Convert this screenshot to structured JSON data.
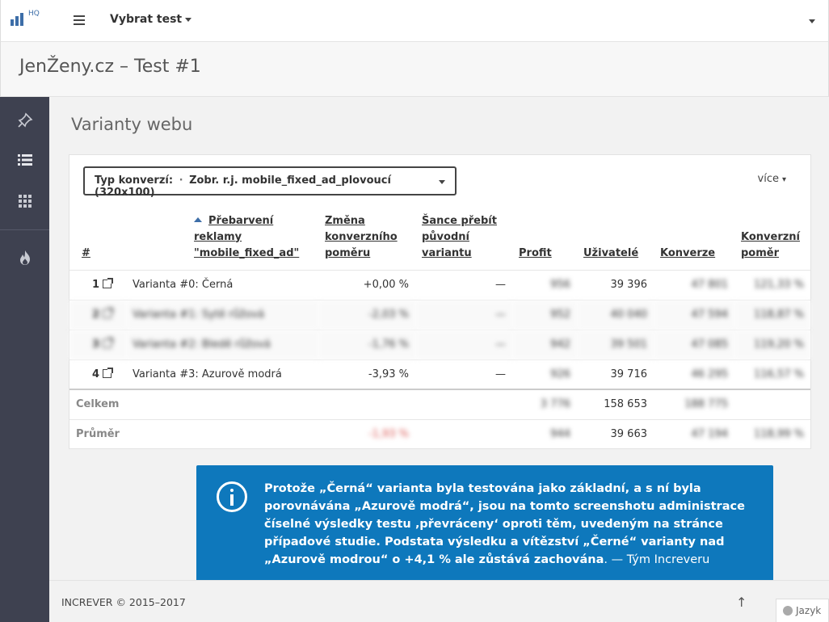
{
  "topbar": {
    "logo_text": "HQ",
    "test_select_label": "Vybrat test"
  },
  "page": {
    "title": "JenŽeny.cz – Test #1",
    "section_title": "Varianty webu"
  },
  "conversion": {
    "label": "Typ konverzí:",
    "value": "Zobr. r.j. mobile_fixed_ad_plovoucí (320x100)",
    "more_label": "více"
  },
  "table": {
    "headers": {
      "index": "#",
      "name_line1": "Přebarvení reklamy",
      "name_line2": "\"mobile_fixed_ad\"",
      "change_line1": "Změna",
      "change_line2": "konverzního",
      "change_line3": "poměru",
      "chance_line1": "Šance přebít",
      "chance_line2": "původní",
      "chance_line3": "variantu",
      "profit": "Profit",
      "users": "Uživatelé",
      "conversions": "Konverze",
      "rate_line1": "Konverzní",
      "rate_line2": "poměr"
    },
    "rows": [
      {
        "idx": "1",
        "name": "Varianta #0: Černá",
        "change": "+0,00 %",
        "chance": "—",
        "profit": "956",
        "users": "39 396",
        "conversions": "47 801",
        "rate": "121,33 %"
      },
      {
        "idx": "2",
        "name": "Varianta #1: Sytě růžová",
        "change": "-2,03 %",
        "chance": "—",
        "profit": "952",
        "users": "40 040",
        "conversions": "47 594",
        "rate": "118,87 %"
      },
      {
        "idx": "3",
        "name": "Varianta #2: Bledě růžová",
        "change": "-1,76 %",
        "chance": "—",
        "profit": "942",
        "users": "39 501",
        "conversions": "47 085",
        "rate": "119,20 %"
      },
      {
        "idx": "4",
        "name": "Varianta #3: Azurově modrá",
        "change": "-3,93 %",
        "chance": "—",
        "profit": "926",
        "users": "39 716",
        "conversions": "46 295",
        "rate": "116,57 %"
      }
    ],
    "total": {
      "label": "Celkem",
      "profit": "3 776",
      "users": "158 653",
      "conversions": "188 775"
    },
    "average": {
      "label": "Průměr",
      "change": "-1,93 %",
      "profit": "944",
      "users": "39 663",
      "conversions": "47 194",
      "rate": "118,99 %"
    }
  },
  "infobox": {
    "text": "Protože „Černá“ varianta byla testována jako základní, a s ní byla porovnávána „Azurově modrá“, jsou na tomto screenshotu administrace číselné výsledky testu ‚převráceny‘ oproti těm, uvedeným na stránce případové studie. Podstata výsledku a vítězství „Černé“ varianty nad „Azurově modrou“ o +4,1 % ale zůstává zachována",
    "signature": ". — Tým Increveru"
  },
  "footer": {
    "copyright": "INCREVER © 2015–2017",
    "scroll_top": "↑",
    "language": "Jazyk"
  }
}
